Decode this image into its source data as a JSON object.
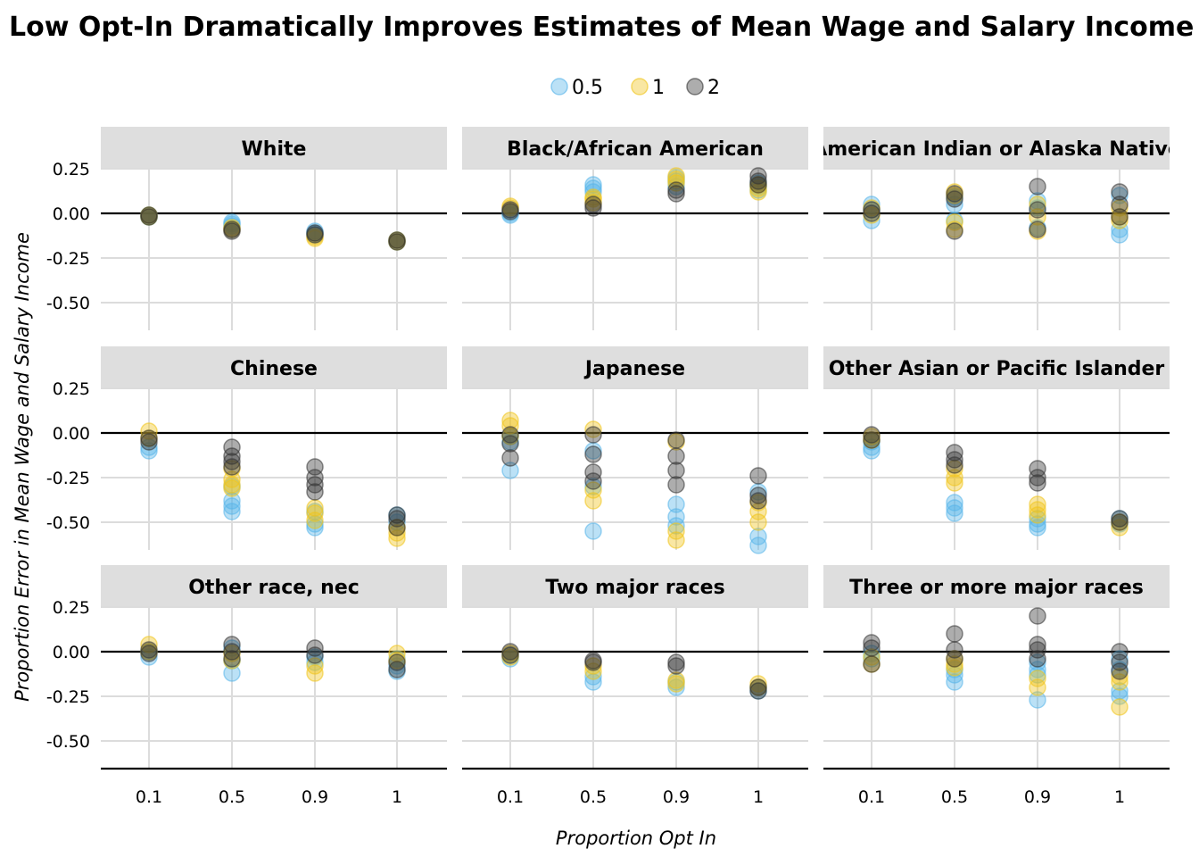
{
  "chart_data": {
    "type": "scatter",
    "title": "Low Opt-In Dramatically Improves Estimates of Mean Wage and Salary Income",
    "xlabel": "Proportion Opt In",
    "ylabel": "Proportion Error in Mean Wage and Salary Income",
    "x_categories": [
      "0.1",
      "0.5",
      "0.9",
      "1"
    ],
    "y_ticks": [
      0.25,
      0.0,
      -0.25,
      -0.5
    ],
    "y_tick_labels": [
      "0.25",
      "0.00",
      "-0.25",
      "-0.50"
    ],
    "ylim": [
      -0.66,
      0.46
    ],
    "grid": true,
    "legend": {
      "position": "top",
      "entries": [
        {
          "label": "0.5",
          "color": "#56B4E9"
        },
        {
          "label": "1",
          "color": "#F0C419"
        },
        {
          "label": "2",
          "color": "#333333"
        }
      ]
    },
    "point_alpha": 0.4,
    "facets": [
      {
        "title": "White",
        "points": {
          "0.5": [
            [
              -0.02,
              -0.01,
              -0.02
            ],
            [
              -0.05,
              -0.06,
              -0.07
            ],
            [
              -0.1,
              -0.11,
              -0.12
            ],
            [
              -0.15,
              -0.16
            ]
          ],
          "1": [
            [
              -0.01,
              -0.02
            ],
            [
              -0.08,
              -0.09
            ],
            [
              -0.13,
              -0.14
            ],
            [
              -0.15,
              -0.16
            ]
          ],
          "2": [
            [
              -0.01,
              -0.02
            ],
            [
              -0.09,
              -0.1
            ],
            [
              -0.11,
              -0.12
            ],
            [
              -0.15,
              -0.16
            ]
          ]
        }
      },
      {
        "title": "Black/African American",
        "points": {
          "0.5": [
            [
              0.0,
              -0.01
            ],
            [
              0.16,
              0.14,
              0.12
            ],
            [
              0.2,
              0.18,
              0.15
            ],
            [
              0.17,
              0.15,
              0.13
            ]
          ],
          "1": [
            [
              0.04,
              0.03
            ],
            [
              0.09,
              0.08,
              0.06
            ],
            [
              0.21,
              0.19,
              0.17
            ],
            [
              0.16,
              0.14,
              0.12
            ]
          ],
          "2": [
            [
              0.02,
              0.01
            ],
            [
              0.05,
              0.03
            ],
            [
              0.13,
              0.11
            ],
            [
              0.21,
              0.18,
              0.16
            ]
          ]
        }
      },
      {
        "title": "American Indian or Alaska Native",
        "points": {
          "0.5": [
            [
              0.05,
              0.02,
              -0.04
            ],
            [
              0.09,
              0.05,
              -0.04
            ],
            [
              0.07,
              0.03,
              -0.08
            ],
            [
              0.1,
              -0.09,
              -0.12
            ]
          ],
          "1": [
            [
              0.03,
              -0.01
            ],
            [
              0.12,
              0.1,
              -0.05,
              -0.09
            ],
            [
              0.05,
              -0.02,
              -0.1
            ],
            [
              0.03,
              -0.02,
              -0.04
            ]
          ],
          "2": [
            [
              0.02,
              0.0
            ],
            [
              0.11,
              0.08,
              -0.1
            ],
            [
              0.15,
              0.02,
              -0.09
            ],
            [
              0.12,
              0.05,
              -0.02
            ]
          ]
        }
      },
      {
        "title": "Chinese",
        "points": {
          "0.5": [
            [
              -0.08,
              -0.1
            ],
            [
              -0.3,
              -0.38,
              -0.41,
              -0.44
            ],
            [
              -0.44,
              -0.51,
              -0.53
            ],
            [
              -0.46,
              -0.5
            ]
          ],
          "1": [
            [
              0.01,
              -0.03
            ],
            [
              -0.2,
              -0.26,
              -0.29,
              -0.31
            ],
            [
              -0.42,
              -0.45,
              -0.49
            ],
            [
              -0.53,
              -0.56,
              -0.59
            ]
          ],
          "2": [
            [
              -0.03,
              -0.05
            ],
            [
              -0.08,
              -0.13,
              -0.16,
              -0.19
            ],
            [
              -0.19,
              -0.25,
              -0.29,
              -0.33
            ],
            [
              -0.46,
              -0.48,
              -0.53
            ]
          ]
        }
      },
      {
        "title": "Japanese",
        "points": {
          "0.5": [
            [
              -0.02,
              -0.05,
              -0.21
            ],
            [
              -0.1,
              -0.3,
              -0.55
            ],
            [
              -0.4,
              -0.47,
              -0.52
            ],
            [
              -0.33,
              -0.58,
              -0.63
            ]
          ],
          "1": [
            [
              0.07,
              0.04,
              -0.02
            ],
            [
              0.02,
              -0.32,
              -0.38
            ],
            [
              -0.05,
              -0.55,
              -0.6
            ],
            [
              -0.39,
              -0.44,
              -0.5
            ]
          ],
          "2": [
            [
              -0.01,
              -0.06,
              -0.14
            ],
            [
              -0.01,
              -0.12,
              -0.22,
              -0.27
            ],
            [
              -0.04,
              -0.13,
              -0.21,
              -0.29
            ],
            [
              -0.24,
              -0.35,
              -0.38
            ]
          ]
        }
      },
      {
        "title": "Other Asian or Pacific Islander",
        "points": {
          "0.5": [
            [
              -0.05,
              -0.08,
              -0.1
            ],
            [
              -0.39,
              -0.42,
              -0.45
            ],
            [
              -0.48,
              -0.51,
              -0.53
            ],
            [
              -0.48,
              -0.51
            ]
          ],
          "1": [
            [
              -0.02,
              -0.04
            ],
            [
              -0.2,
              -0.25,
              -0.28
            ],
            [
              -0.4,
              -0.43,
              -0.46
            ],
            [
              -0.5,
              -0.53
            ]
          ],
          "2": [
            [
              -0.01,
              -0.04
            ],
            [
              -0.11,
              -0.15,
              -0.18
            ],
            [
              -0.2,
              -0.25,
              -0.28
            ],
            [
              -0.48,
              -0.5
            ]
          ]
        }
      },
      {
        "title": "Other race, nec",
        "points": {
          "0.5": [
            [
              0.0,
              -0.03
            ],
            [
              0.02,
              -0.05,
              -0.12
            ],
            [
              -0.03,
              -0.06
            ],
            [
              -0.04,
              -0.08,
              -0.11
            ]
          ],
          "1": [
            [
              0.04,
              0.0
            ],
            [
              -0.01,
              -0.05
            ],
            [
              -0.08,
              -0.12
            ],
            [
              -0.01,
              -0.05
            ]
          ],
          "2": [
            [
              0.01,
              -0.01
            ],
            [
              0.04,
              0.0,
              -0.04
            ],
            [
              0.02,
              -0.02
            ],
            [
              -0.06,
              -0.1
            ]
          ]
        }
      },
      {
        "title": "Two major races",
        "points": {
          "0.5": [
            [
              -0.02,
              -0.04
            ],
            [
              -0.14,
              -0.17
            ],
            [
              -0.17,
              -0.2
            ],
            [
              -0.2,
              -0.22
            ]
          ],
          "1": [
            [
              -0.01,
              -0.03
            ],
            [
              -0.08,
              -0.11
            ],
            [
              -0.16,
              -0.18
            ],
            [
              -0.18,
              -0.2
            ]
          ],
          "2": [
            [
              0.0,
              -0.02
            ],
            [
              -0.05,
              -0.06
            ],
            [
              -0.06,
              -0.08
            ],
            [
              -0.2,
              -0.22
            ]
          ]
        }
      },
      {
        "title": "Three or more major races",
        "points": {
          "0.5": [
            [
              -0.01,
              -0.04
            ],
            [
              -0.1,
              -0.13,
              -0.17
            ],
            [
              -0.06,
              -0.1,
              -0.13,
              -0.27
            ],
            [
              -0.04,
              -0.1,
              -0.22,
              -0.25
            ]
          ],
          "1": [
            [
              -0.03,
              -0.07
            ],
            [
              -0.04,
              -0.07,
              -0.09
            ],
            [
              -0.15,
              -0.2
            ],
            [
              -0.14,
              -0.17,
              -0.31
            ]
          ],
          "2": [
            [
              0.05,
              0.02,
              -0.07
            ],
            [
              0.1,
              0.01,
              -0.04
            ],
            [
              0.2,
              0.04,
              0.01,
              -0.04
            ],
            [
              0.0,
              -0.06,
              -0.11
            ]
          ]
        }
      }
    ]
  }
}
